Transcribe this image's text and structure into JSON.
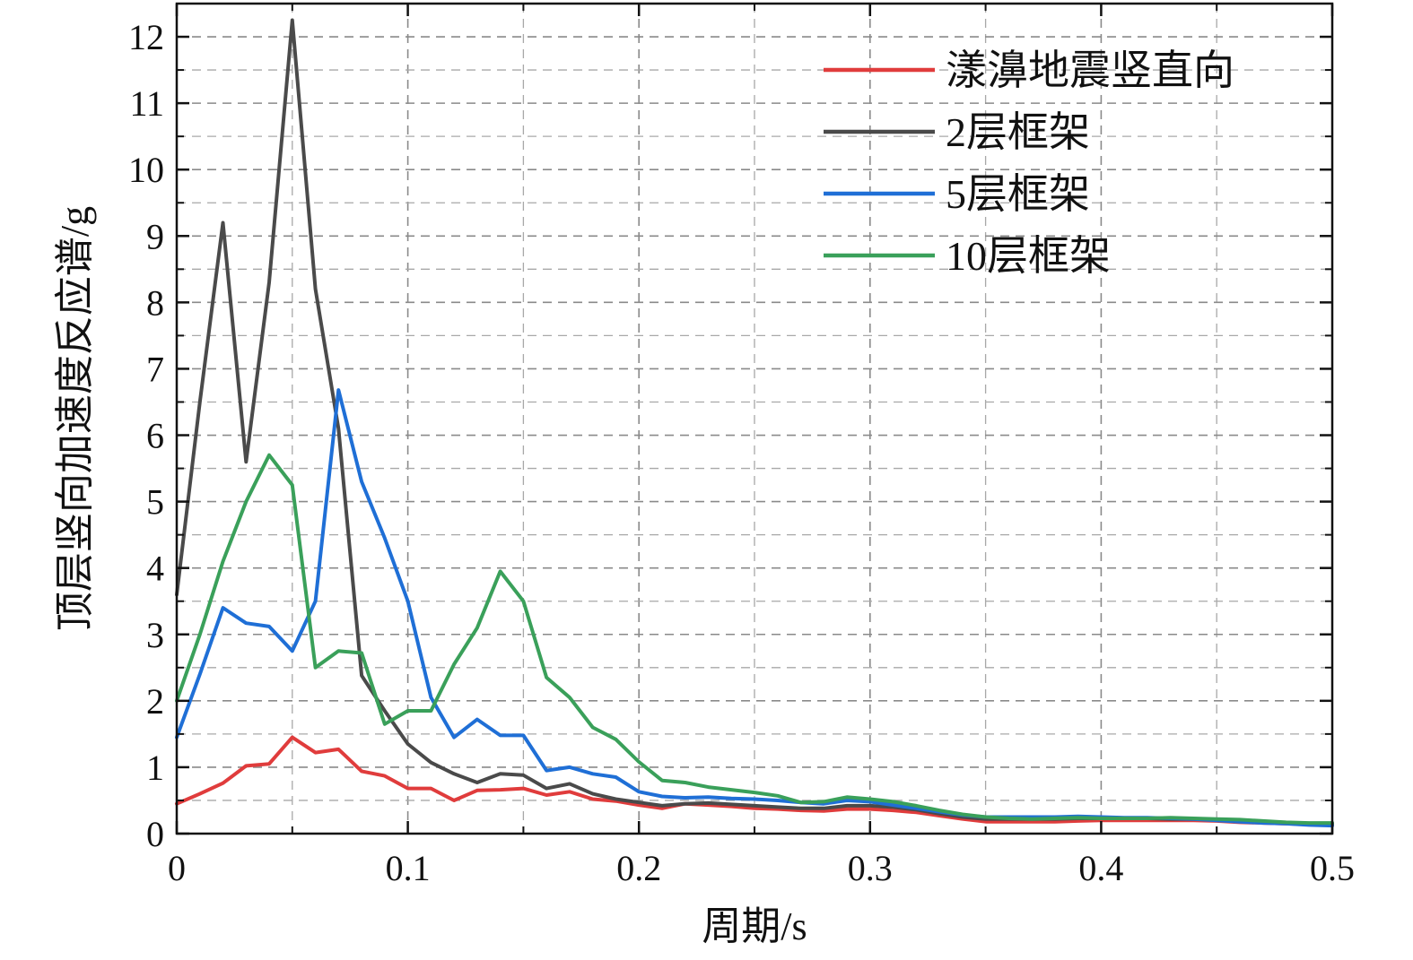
{
  "chart_data": {
    "type": "line",
    "title": "",
    "xlabel": "周期/s",
    "ylabel": "顶层竖向加速度反应谱/g",
    "xlim": [
      0,
      0.5
    ],
    "ylim": [
      0,
      12.5
    ],
    "x_ticks": [
      "0",
      "0.1",
      "0.2",
      "0.3",
      "0.4",
      "0.5"
    ],
    "y_ticks": [
      "0",
      "1",
      "2",
      "3",
      "4",
      "5",
      "6",
      "7",
      "8",
      "9",
      "10",
      "11",
      "12"
    ],
    "x_tick_values": [
      0,
      0.1,
      0.2,
      0.3,
      0.4,
      0.5
    ],
    "y_tick_values": [
      0,
      1,
      2,
      3,
      4,
      5,
      6,
      7,
      8,
      9,
      10,
      11,
      12
    ],
    "x_minor_values": [
      0.05,
      0.15,
      0.25,
      0.35,
      0.45
    ],
    "y_minor_values": [
      0.5,
      1.5,
      2.5,
      3.5,
      4.5,
      5.5,
      6.5,
      7.5,
      8.5,
      9.5,
      10.5,
      11.5
    ],
    "grid": true,
    "legend_position": "top-right",
    "series": [
      {
        "name": "漾濞地震竖直向",
        "color": "#e03c3c",
        "x": [
          0,
          0.01,
          0.02,
          0.03,
          0.04,
          0.05,
          0.06,
          0.07,
          0.08,
          0.09,
          0.1,
          0.11,
          0.12,
          0.13,
          0.14,
          0.15,
          0.16,
          0.17,
          0.18,
          0.19,
          0.2,
          0.21,
          0.22,
          0.23,
          0.24,
          0.25,
          0.26,
          0.27,
          0.28,
          0.29,
          0.3,
          0.31,
          0.32,
          0.33,
          0.34,
          0.35,
          0.36,
          0.37,
          0.38,
          0.39,
          0.4,
          0.41,
          0.42,
          0.43,
          0.44,
          0.45,
          0.46,
          0.47,
          0.48,
          0.49,
          0.5
        ],
        "y": [
          0.45,
          0.6,
          0.76,
          1.02,
          1.05,
          1.45,
          1.22,
          1.27,
          0.94,
          0.87,
          0.68,
          0.68,
          0.5,
          0.65,
          0.66,
          0.68,
          0.58,
          0.63,
          0.52,
          0.49,
          0.43,
          0.38,
          0.45,
          0.43,
          0.41,
          0.38,
          0.37,
          0.35,
          0.34,
          0.37,
          0.37,
          0.35,
          0.32,
          0.27,
          0.22,
          0.18,
          0.18,
          0.18,
          0.18,
          0.19,
          0.2,
          0.2,
          0.2,
          0.2,
          0.2,
          0.19,
          0.17,
          0.16,
          0.15,
          0.14,
          0.13
        ]
      },
      {
        "name": "2层框架",
        "color": "#4a4a4a",
        "x": [
          0,
          0.01,
          0.02,
          0.03,
          0.04,
          0.05,
          0.06,
          0.07,
          0.08,
          0.09,
          0.1,
          0.11,
          0.12,
          0.13,
          0.14,
          0.15,
          0.16,
          0.17,
          0.18,
          0.19,
          0.2,
          0.21,
          0.22,
          0.23,
          0.24,
          0.25,
          0.26,
          0.27,
          0.28,
          0.29,
          0.3,
          0.31,
          0.32,
          0.33,
          0.34,
          0.35,
          0.36,
          0.37,
          0.38,
          0.39,
          0.4,
          0.41,
          0.42,
          0.43,
          0.44,
          0.45,
          0.46,
          0.47,
          0.48,
          0.49,
          0.5
        ],
        "y": [
          3.6,
          6.5,
          9.2,
          5.6,
          8.3,
          12.25,
          8.2,
          6.1,
          2.38,
          1.85,
          1.35,
          1.07,
          0.9,
          0.77,
          0.9,
          0.88,
          0.68,
          0.75,
          0.6,
          0.52,
          0.47,
          0.42,
          0.45,
          0.46,
          0.44,
          0.42,
          0.4,
          0.38,
          0.38,
          0.42,
          0.42,
          0.4,
          0.36,
          0.3,
          0.25,
          0.22,
          0.22,
          0.22,
          0.22,
          0.23,
          0.23,
          0.23,
          0.23,
          0.22,
          0.22,
          0.21,
          0.2,
          0.18,
          0.16,
          0.15,
          0.15
        ]
      },
      {
        "name": "5层框架",
        "color": "#1f6fd6",
        "x": [
          0,
          0.01,
          0.02,
          0.03,
          0.04,
          0.05,
          0.06,
          0.07,
          0.08,
          0.09,
          0.1,
          0.11,
          0.12,
          0.13,
          0.14,
          0.15,
          0.16,
          0.17,
          0.18,
          0.19,
          0.2,
          0.21,
          0.22,
          0.23,
          0.24,
          0.25,
          0.26,
          0.27,
          0.28,
          0.29,
          0.3,
          0.31,
          0.32,
          0.33,
          0.34,
          0.35,
          0.36,
          0.37,
          0.38,
          0.39,
          0.4,
          0.41,
          0.42,
          0.43,
          0.44,
          0.45,
          0.46,
          0.47,
          0.48,
          0.49,
          0.5
        ],
        "y": [
          1.45,
          2.4,
          3.4,
          3.17,
          3.12,
          2.75,
          3.5,
          6.68,
          5.3,
          4.45,
          3.5,
          2.05,
          1.45,
          1.72,
          1.48,
          1.48,
          0.95,
          1.0,
          0.9,
          0.85,
          0.63,
          0.56,
          0.54,
          0.55,
          0.53,
          0.52,
          0.5,
          0.47,
          0.45,
          0.5,
          0.48,
          0.43,
          0.38,
          0.33,
          0.28,
          0.25,
          0.25,
          0.25,
          0.25,
          0.26,
          0.25,
          0.24,
          0.24,
          0.23,
          0.22,
          0.2,
          0.18,
          0.16,
          0.15,
          0.13,
          0.12
        ]
      },
      {
        "name": "10层框架",
        "color": "#3aa05a",
        "x": [
          0,
          0.01,
          0.02,
          0.03,
          0.04,
          0.05,
          0.06,
          0.07,
          0.08,
          0.09,
          0.1,
          0.11,
          0.12,
          0.13,
          0.14,
          0.15,
          0.16,
          0.17,
          0.18,
          0.19,
          0.2,
          0.21,
          0.22,
          0.23,
          0.24,
          0.25,
          0.26,
          0.27,
          0.28,
          0.29,
          0.3,
          0.31,
          0.32,
          0.33,
          0.34,
          0.35,
          0.36,
          0.37,
          0.38,
          0.39,
          0.4,
          0.41,
          0.42,
          0.43,
          0.44,
          0.45,
          0.46,
          0.47,
          0.48,
          0.49,
          0.5
        ],
        "y": [
          2.0,
          3.0,
          4.1,
          5.0,
          5.7,
          5.25,
          2.5,
          2.75,
          2.72,
          1.65,
          1.85,
          1.85,
          2.55,
          3.1,
          3.95,
          3.5,
          2.35,
          2.05,
          1.6,
          1.42,
          1.08,
          0.8,
          0.77,
          0.7,
          0.66,
          0.62,
          0.57,
          0.47,
          0.48,
          0.55,
          0.52,
          0.48,
          0.42,
          0.35,
          0.29,
          0.25,
          0.23,
          0.22,
          0.23,
          0.24,
          0.23,
          0.23,
          0.23,
          0.24,
          0.23,
          0.22,
          0.21,
          0.19,
          0.17,
          0.16,
          0.16
        ]
      }
    ]
  }
}
